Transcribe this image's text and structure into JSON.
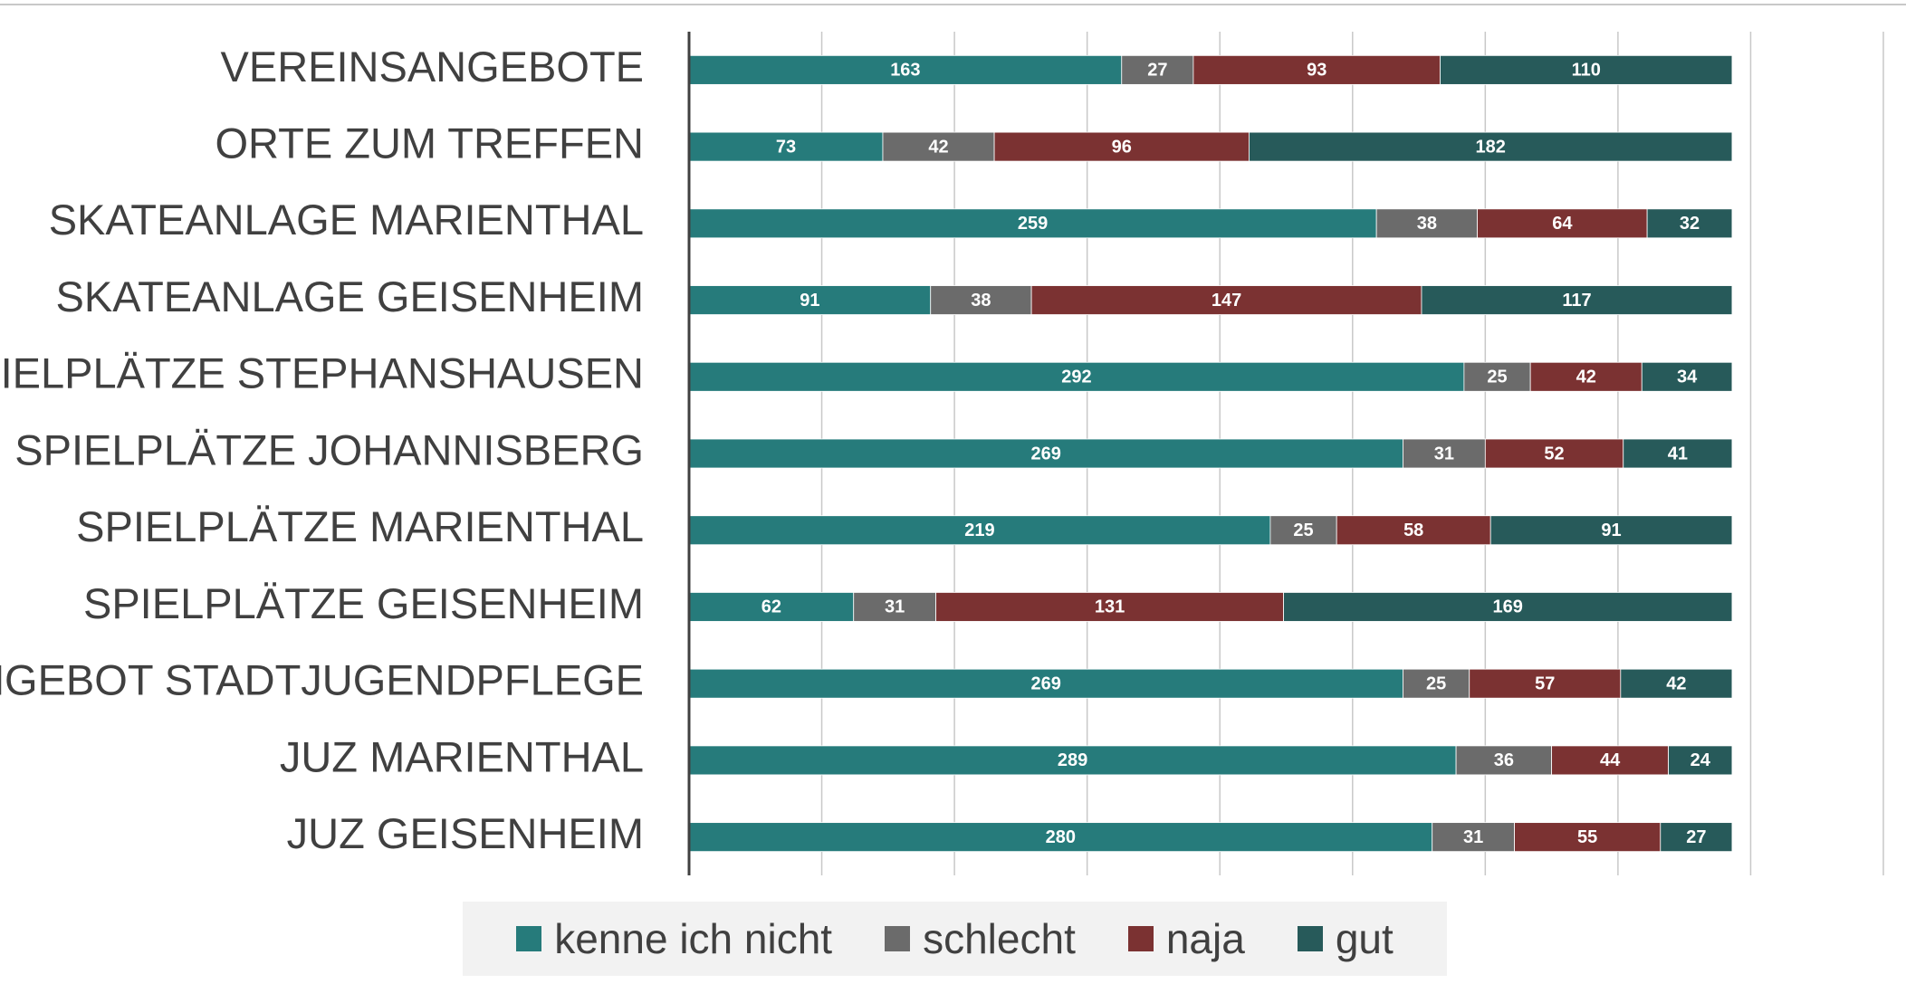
{
  "chart_data": {
    "type": "stacked-barh",
    "categories": [
      "VEREINSANGEBOTE",
      "ORTE ZUM TREFFEN",
      "SKATEANLAGE MARIENTHAL",
      "SKATEANLAGE GEISENHEIM",
      "SPIELPLÄTZE STEPHANSHAUSEN",
      "SPIELPLÄTZE JOHANNISBERG",
      "SPIELPLÄTZE MARIENTHAL",
      "SPIELPLÄTZE GEISENHEIM",
      "ANGEBOT STADTJUGENDPFLEGE",
      "JUZ MARIENTHAL",
      "JUZ GEISENHEIM"
    ],
    "series": [
      {
        "name": "kenne ich nicht",
        "color": "#267b7b",
        "values": [
          163,
          73,
          259,
          91,
          292,
          269,
          219,
          62,
          269,
          289,
          280
        ]
      },
      {
        "name": "schlecht",
        "color": "#6b6b6b",
        "values": [
          27,
          42,
          38,
          38,
          25,
          31,
          25,
          31,
          25,
          36,
          31
        ]
      },
      {
        "name": "naja",
        "color": "#7b3232",
        "values": [
          93,
          96,
          64,
          147,
          42,
          52,
          58,
          131,
          57,
          44,
          55
        ]
      },
      {
        "name": "gut",
        "color": "#275a5a",
        "values": [
          110,
          182,
          32,
          117,
          34,
          41,
          91,
          169,
          42,
          24,
          27
        ]
      }
    ],
    "xlim": [
      0,
      450
    ],
    "xticks": [
      0,
      50,
      100,
      150,
      200,
      250,
      300,
      350,
      400,
      450
    ],
    "grid": true
  }
}
